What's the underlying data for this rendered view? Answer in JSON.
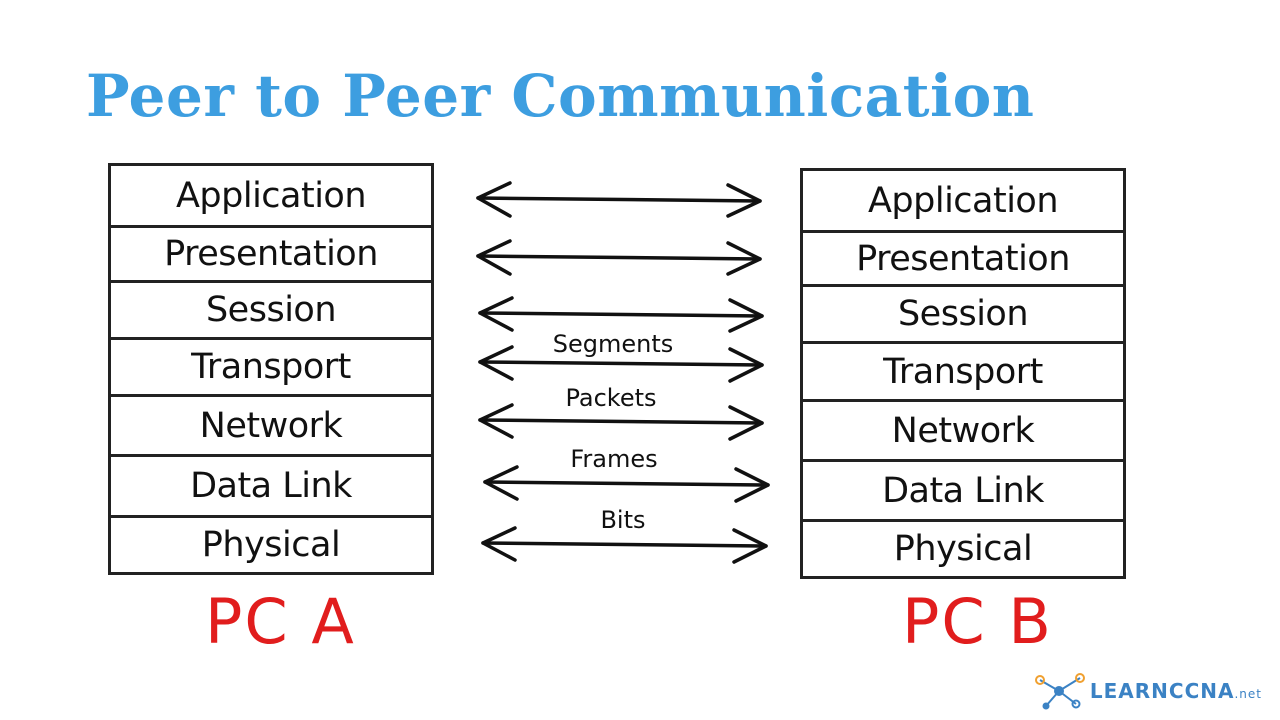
{
  "title": "Peer to Peer Communication",
  "pc_a": {
    "label": "PC A",
    "layers": [
      "Application",
      "Presentation",
      "Session",
      "Transport",
      "Network",
      "Data Link",
      "Physical"
    ]
  },
  "pc_b": {
    "label": "PC B",
    "layers": [
      "Application",
      "Presentation",
      "Session",
      "Transport",
      "Network",
      "Data Link",
      "Physical"
    ]
  },
  "pdus": {
    "transport": "Segments",
    "network": "Packets",
    "datalink": "Frames",
    "physical": "Bits"
  },
  "logo": {
    "name": "LEARNCCNA",
    "suffix": ".net",
    "icon": "network-nodes-icon"
  },
  "colors": {
    "title": "#3d9ee0",
    "pc_label": "#e11d1d",
    "logo": "#3b82c4"
  }
}
